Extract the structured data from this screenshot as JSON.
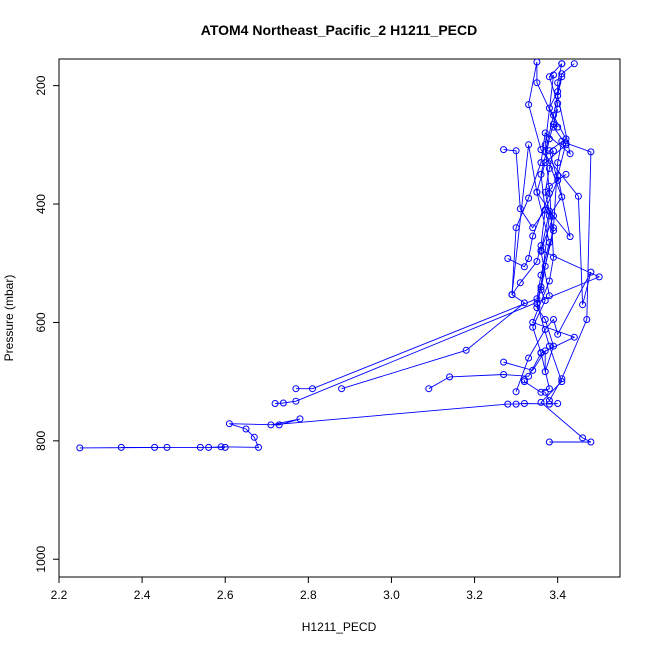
{
  "chart_data": {
    "type": "scatter",
    "title": "ATOM4 Northeast_Pacific_2 H1211_PECD",
    "xlabel": "H1211_PECD",
    "ylabel": "Pressure (mbar)",
    "xlim": [
      2.2,
      3.55
    ],
    "ylim": [
      1030,
      155
    ],
    "y_inverted": true,
    "xticks": [
      "2.2",
      "2.4",
      "2.6",
      "2.8",
      "3.0",
      "3.2",
      "3.4"
    ],
    "yticks": [
      "200",
      "400",
      "600",
      "800",
      "1000"
    ],
    "series_color": "#0000ff",
    "grid": false,
    "series": [
      {
        "x": [
          2.25,
          2.46,
          2.6,
          2.54,
          2.35,
          2.43,
          2.56,
          2.59,
          2.68,
          2.67,
          2.65,
          2.61,
          2.73,
          2.78,
          2.71,
          3.28,
          3.3,
          3.32,
          3.38,
          3.4
        ],
        "y": [
          812,
          811,
          811,
          811,
          811,
          811,
          811,
          810,
          811,
          794,
          780,
          771,
          773,
          763,
          773,
          738,
          738,
          737,
          738,
          737
        ]
      },
      {
        "x": [
          2.77,
          2.81,
          3.35,
          3.36,
          3.38,
          3.35,
          3.33,
          3.29,
          3.31,
          3.35,
          3.36,
          3.37,
          3.4,
          3.38,
          3.42,
          3.38,
          3.4,
          3.41,
          3.44
        ],
        "y": [
          712,
          712,
          560,
          520,
          465,
          380,
          300,
          553,
          533,
          497,
          470,
          410,
          360,
          310,
          290,
          238,
          210,
          180,
          163
        ]
      },
      {
        "x": [
          2.72,
          2.74,
          2.77,
          3.5,
          3.36,
          3.39,
          3.35,
          3.37,
          3.42,
          3.39,
          3.4,
          3.38,
          3.41
        ],
        "y": [
          737,
          736,
          733,
          523,
          478,
          420,
          380,
          330,
          300,
          270,
          230,
          185,
          163
        ]
      },
      {
        "x": [
          2.88,
          3.18,
          3.32,
          3.29,
          3.3,
          3.33,
          3.36,
          3.37,
          3.43,
          3.4,
          3.4,
          3.41
        ],
        "y": [
          712,
          647,
          567,
          553,
          440,
          390,
          330,
          280,
          315,
          217,
          195,
          163
        ]
      },
      {
        "x": [
          3.09,
          3.14,
          3.27,
          3.33,
          3.36,
          3.44,
          3.34,
          3.38,
          3.39,
          3.38,
          3.42
        ],
        "y": [
          712,
          692,
          688,
          691,
          652,
          625,
          600,
          530,
          490,
          370,
          350
        ]
      },
      {
        "x": [
          3.32,
          3.32,
          3.36,
          3.38,
          3.36,
          3.34,
          3.37,
          3.36,
          3.37,
          3.39,
          3.37,
          3.38,
          3.39
        ],
        "y": [
          697,
          700,
          718,
          712,
          651,
          608,
          563,
          545,
          505,
          445,
          380,
          340,
          310
        ]
      },
      {
        "x": [
          3.27,
          3.34,
          3.37,
          3.37,
          3.39,
          3.37,
          3.35,
          3.36,
          3.38,
          3.41,
          3.37,
          3.39,
          3.41
        ],
        "y": [
          667,
          681,
          648,
          683,
          640,
          595,
          575,
          540,
          420,
          388,
          312,
          250,
          185
        ]
      },
      {
        "x": [
          3.3,
          3.33,
          3.37,
          3.39,
          3.4,
          3.48,
          3.46,
          3.45,
          3.36,
          3.33,
          3.35,
          3.35,
          3.4
        ],
        "y": [
          717,
          660,
          612,
          595,
          620,
          515,
          570,
          387,
          308,
          232,
          160,
          195,
          270
        ]
      },
      {
        "x": [
          3.37,
          3.38,
          3.41,
          3.47,
          3.48,
          3.42,
          3.4,
          3.43,
          3.38,
          3.36,
          3.38
        ],
        "y": [
          718,
          732,
          695,
          595,
          312,
          297,
          352,
          455,
          412,
          480,
          555
        ]
      },
      {
        "x": [
          3.38,
          3.48,
          3.46,
          3.36,
          3.41,
          3.38,
          3.35,
          3.39,
          3.4,
          3.41
        ],
        "y": [
          802,
          802,
          795,
          735,
          700,
          640,
          568,
          440,
          330,
          294
        ]
      },
      {
        "x": [
          3.27,
          3.3,
          3.31,
          3.34,
          3.37,
          3.36,
          3.38,
          3.39,
          3.4
        ],
        "y": [
          308,
          310,
          408,
          440,
          410,
          350,
          290,
          265,
          240
        ]
      },
      {
        "x": [
          3.28,
          3.32,
          3.33,
          3.34,
          3.38,
          3.37,
          3.39
        ],
        "y": [
          492,
          506,
          492,
          454,
          382,
          300,
          182
        ]
      }
    ]
  }
}
